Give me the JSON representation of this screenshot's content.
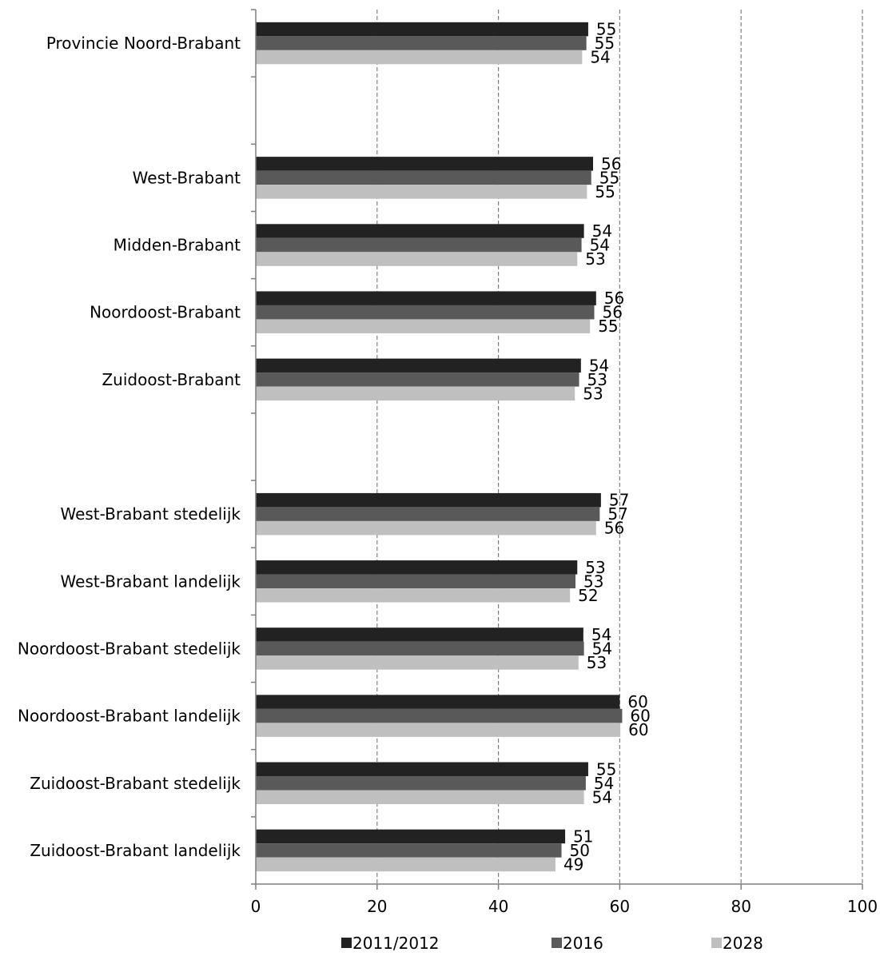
{
  "chart_data": {
    "type": "bar",
    "orientation": "horizontal",
    "title": "",
    "xlabel": "",
    "ylabel": "",
    "xlim": [
      0,
      100
    ],
    "x_ticks": [
      0,
      20,
      40,
      60,
      80,
      100
    ],
    "grid": "vertical dashed",
    "legend_position": "bottom",
    "categories": [
      "Provincie Noord-Brabant",
      "",
      "West-Brabant",
      "Midden-Brabant",
      "Noordoost-Brabant",
      "Zuidoost-Brabant",
      "",
      "West-Brabant stedelijk",
      "West-Brabant landelijk",
      "Noordoost-Brabant stedelijk",
      "Noordoost-Brabant landelijk",
      "Zuidoost-Brabant stedelijk",
      "Zuidoost-Brabant landelijk"
    ],
    "series": [
      {
        "name": "2011/2012",
        "color": "#222222",
        "values": [
          54.8,
          null,
          55.6,
          54.1,
          56.1,
          53.6,
          null,
          56.9,
          53.0,
          54.0,
          60.0,
          54.8,
          51.0
        ],
        "labels": [
          "55",
          "",
          "56",
          "54",
          "56",
          "54",
          "",
          "57",
          "53",
          "54",
          "60",
          "55",
          "51"
        ]
      },
      {
        "name": "2016",
        "color": "#595959",
        "values": [
          54.5,
          null,
          55.3,
          53.7,
          55.8,
          53.3,
          null,
          56.7,
          52.7,
          54.1,
          60.4,
          54.4,
          50.4
        ],
        "labels": [
          "55",
          "",
          "55",
          "54",
          "56",
          "53",
          "",
          "57",
          "53",
          "54",
          "60",
          "54",
          "50"
        ]
      },
      {
        "name": "2028",
        "color": "#bfbfbf",
        "values": [
          53.8,
          null,
          54.6,
          53.0,
          55.1,
          52.6,
          null,
          56.1,
          51.8,
          53.2,
          60.1,
          54.1,
          49.4
        ],
        "labels": [
          "54",
          "",
          "55",
          "53",
          "55",
          "53",
          "",
          "56",
          "52",
          "53",
          "60",
          "54",
          "49"
        ]
      }
    ]
  }
}
